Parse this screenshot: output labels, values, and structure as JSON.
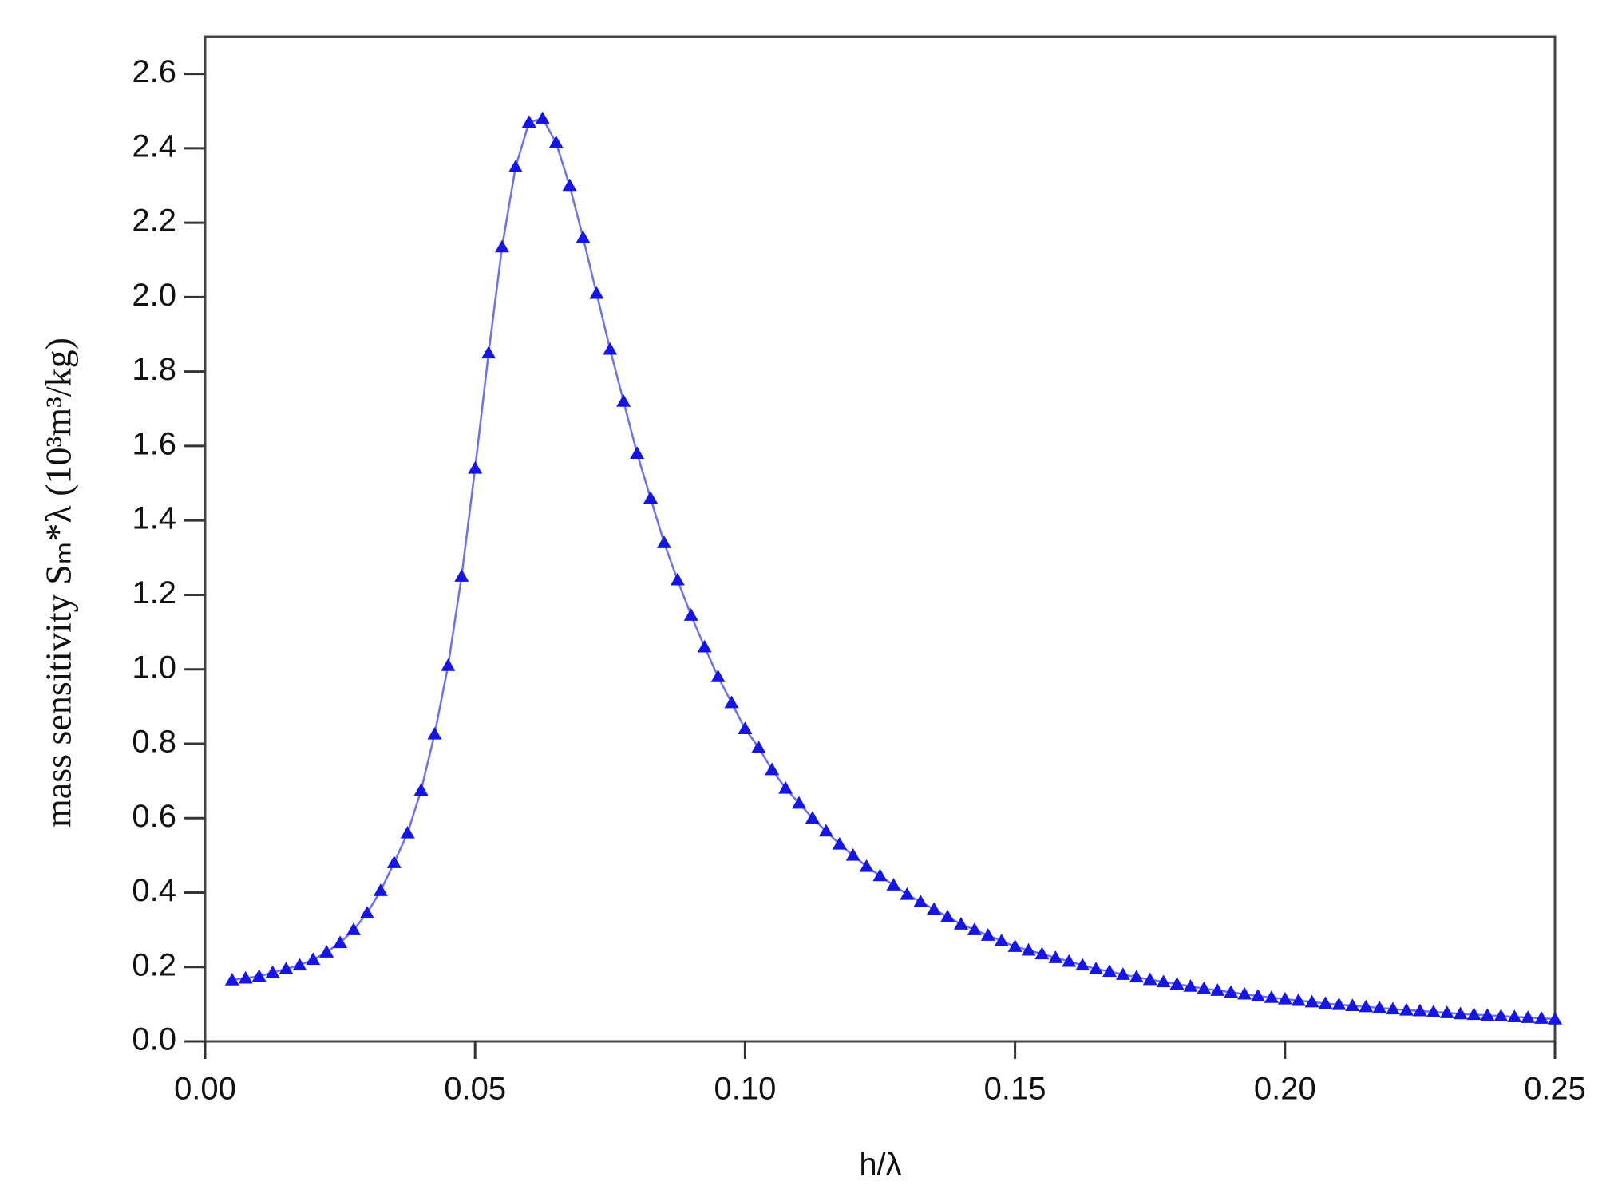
{
  "chart_data": {
    "type": "line",
    "xlabel": "h/λ",
    "ylabel": "mass sensitivity Sₘ*λ (10³m³/kg)",
    "xlim": [
      0,
      0.25
    ],
    "ylim": [
      0,
      2.7
    ],
    "xticks": [
      {
        "value": 0,
        "label": "0.00"
      },
      0.05,
      {
        "value": 0.1,
        "label": "0.10"
      },
      0.15,
      {
        "value": 0.2,
        "label": "0.20"
      },
      0.25
    ],
    "yticks": [
      {
        "value": 0,
        "label": "0.0"
      },
      0.2,
      0.4,
      0.6,
      0.8,
      {
        "value": 1,
        "label": "1.0"
      },
      1.2,
      1.4,
      1.6,
      1.8,
      {
        "value": 2,
        "label": "2.0"
      },
      2.2,
      2.4,
      2.6
    ],
    "series": [
      {
        "color": "#1515e6",
        "line_color": "#6f6ff2",
        "x": [
          0.005,
          0.0075,
          0.01,
          0.0125,
          0.015,
          0.0175,
          0.02,
          0.0225,
          0.025,
          0.0275,
          0.03,
          0.0325,
          0.035,
          0.0375,
          0.04,
          0.0425,
          0.045,
          0.0475,
          0.05,
          0.0525,
          0.055,
          0.0575,
          0.06,
          0.0625,
          0.065,
          0.0675,
          0.07,
          0.0725,
          0.075,
          0.0775,
          0.08,
          0.0825,
          0.085,
          0.0875,
          0.09,
          0.0925,
          0.095,
          0.0975,
          0.1,
          0.1025,
          0.105,
          0.1075,
          0.11,
          0.1125,
          0.115,
          0.1175,
          0.12,
          0.1225,
          0.125,
          0.1275,
          0.13,
          0.1325,
          0.135,
          0.1375,
          0.14,
          0.1425,
          0.145,
          0.1475,
          0.15,
          0.1525,
          0.155,
          0.1575,
          0.16,
          0.1625,
          0.165,
          0.1675,
          0.17,
          0.1725,
          0.175,
          0.1775,
          0.18,
          0.1825,
          0.185,
          0.1875,
          0.19,
          0.1925,
          0.195,
          0.1975,
          0.2,
          0.2025,
          0.205,
          0.2075,
          0.21,
          0.2125,
          0.215,
          0.2175,
          0.22,
          0.2225,
          0.225,
          0.2275,
          0.23,
          0.2325,
          0.235,
          0.2375,
          0.24,
          0.2425,
          0.245,
          0.2475,
          0.25
        ],
        "values": [
          0.165,
          0.17,
          0.175,
          0.185,
          0.195,
          0.205,
          0.22,
          0.24,
          0.265,
          0.3,
          0.345,
          0.405,
          0.48,
          0.56,
          0.675,
          0.826,
          1.01,
          1.25,
          1.54,
          1.85,
          2.135,
          2.35,
          2.47,
          2.48,
          2.415,
          2.3,
          2.16,
          2.01,
          1.86,
          1.72,
          1.58,
          1.46,
          1.34,
          1.24,
          1.145,
          1.06,
          0.98,
          0.91,
          0.84,
          0.79,
          0.73,
          0.68,
          0.64,
          0.6,
          0.565,
          0.53,
          0.5,
          0.47,
          0.445,
          0.42,
          0.395,
          0.375,
          0.355,
          0.335,
          0.315,
          0.3,
          0.285,
          0.27,
          0.255,
          0.245,
          0.235,
          0.225,
          0.215,
          0.205,
          0.195,
          0.188,
          0.18,
          0.173,
          0.166,
          0.16,
          0.154,
          0.148,
          0.142,
          0.137,
          0.132,
          0.127,
          0.122,
          0.118,
          0.114,
          0.11,
          0.106,
          0.102,
          0.099,
          0.096,
          0.093,
          0.09,
          0.087,
          0.084,
          0.082,
          0.079,
          0.077,
          0.074,
          0.072,
          0.07,
          0.068,
          0.066,
          0.064,
          0.062,
          0.06
        ]
      }
    ]
  }
}
